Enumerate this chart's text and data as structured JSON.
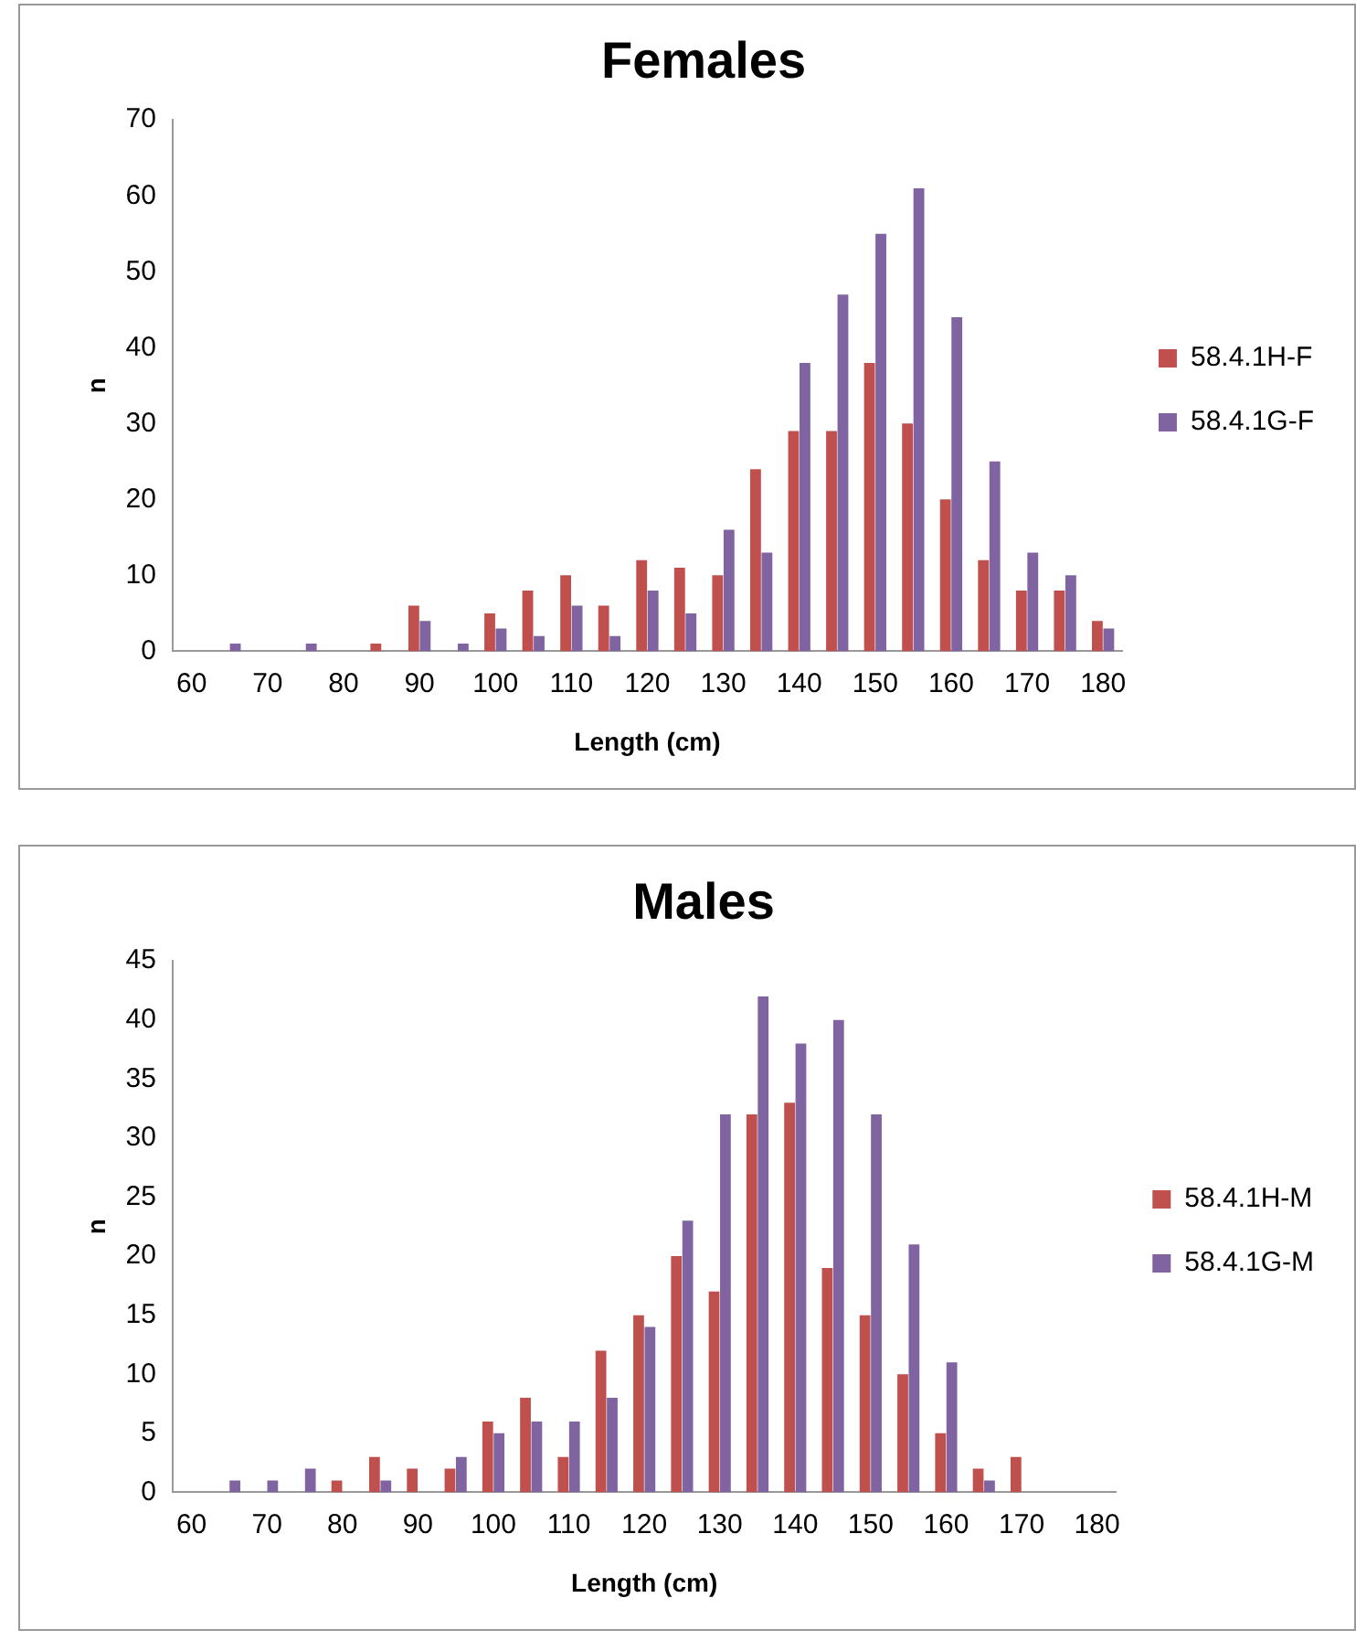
{
  "chart_data": [
    {
      "type": "bar",
      "title": "Females",
      "xlabel": "Length (cm)",
      "ylabel": "n",
      "categories": [
        "60",
        null,
        "70",
        null,
        "80",
        null,
        "90",
        null,
        "100",
        null,
        "110",
        null,
        "120",
        null,
        "130",
        null,
        "140",
        null,
        "150",
        null,
        "160",
        null,
        "170",
        null,
        "180"
      ],
      "series": [
        {
          "name": "58.4.1H-F",
          "color": "#c0504d",
          "values": [
            0,
            0,
            0,
            0,
            0,
            1,
            6,
            0,
            5,
            8,
            10,
            6,
            12,
            11,
            10,
            24,
            29,
            29,
            38,
            30,
            20,
            12,
            8,
            8,
            4
          ]
        },
        {
          "name": "58.4.1G-F",
          "color": "#8064a2",
          "values": [
            0,
            1,
            0,
            1,
            0,
            0,
            4,
            1,
            3,
            2,
            6,
            2,
            8,
            5,
            16,
            13,
            38,
            47,
            55,
            61,
            44,
            25,
            13,
            10,
            3
          ]
        }
      ],
      "ylim": [
        0,
        70
      ],
      "yticks": [
        0,
        10,
        20,
        30,
        40,
        50,
        60,
        70
      ],
      "grid": false,
      "legend": "right"
    },
    {
      "type": "bar",
      "title": "Males",
      "xlabel": "Length (cm)",
      "ylabel": "n",
      "categories": [
        "60",
        null,
        "70",
        null,
        "80",
        null,
        "90",
        null,
        "100",
        null,
        "110",
        null,
        "120",
        null,
        "130",
        null,
        "140",
        null,
        "150",
        null,
        "160",
        null,
        "170",
        null,
        "180"
      ],
      "series": [
        {
          "name": "58.4.1H-M",
          "color": "#c0504d",
          "values": [
            0,
            0,
            0,
            0,
            1,
            3,
            2,
            2,
            6,
            8,
            3,
            12,
            15,
            20,
            17,
            32,
            33,
            19,
            15,
            10,
            5,
            2,
            3,
            0,
            0
          ]
        },
        {
          "name": "58.4.1G-M",
          "color": "#8064a2",
          "values": [
            0,
            1,
            1,
            2,
            0,
            1,
            0,
            3,
            5,
            6,
            6,
            8,
            14,
            23,
            32,
            42,
            38,
            40,
            32,
            21,
            11,
            1,
            0,
            0,
            0
          ]
        }
      ],
      "ylim": [
        0,
        45
      ],
      "yticks": [
        0,
        5,
        10,
        15,
        20,
        25,
        30,
        35,
        40,
        45
      ],
      "grid": false,
      "legend": "right"
    }
  ]
}
